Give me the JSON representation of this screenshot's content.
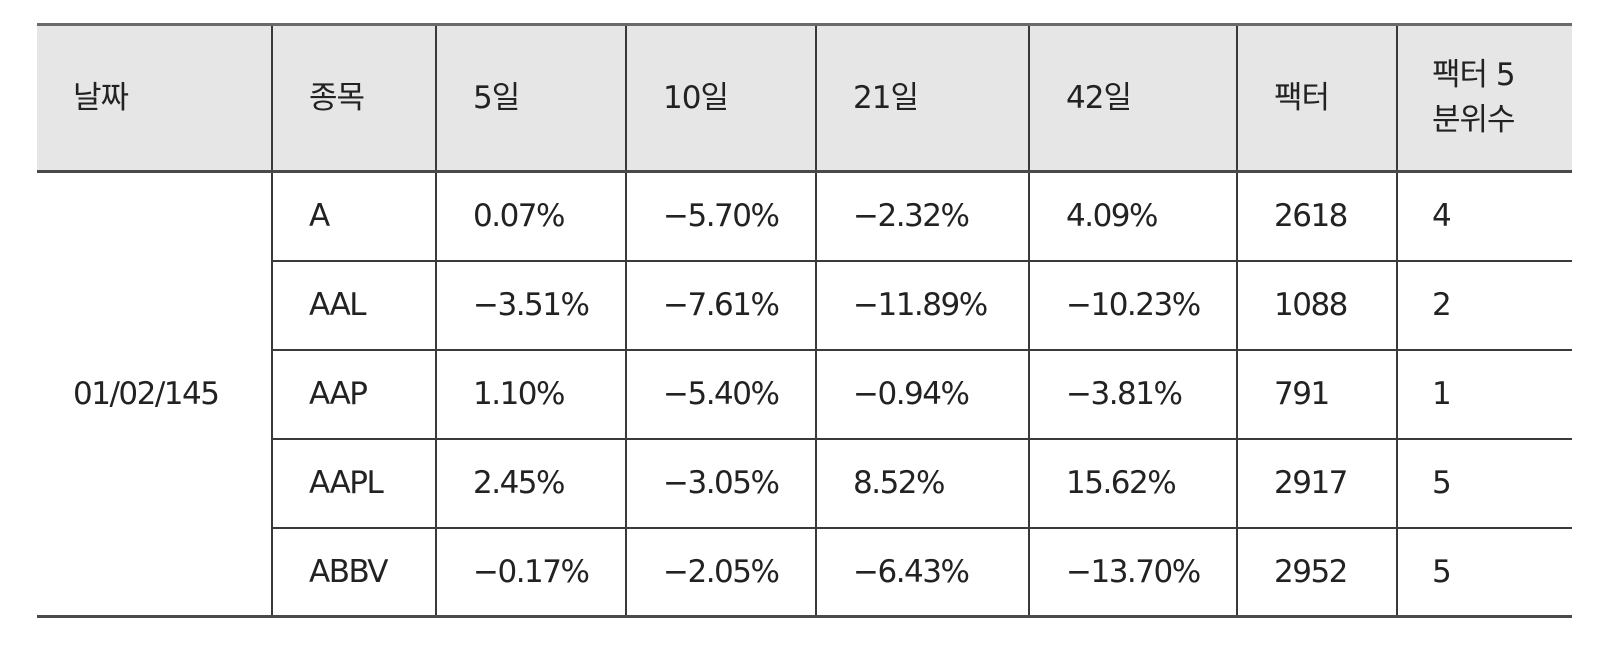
{
  "table": {
    "headers": {
      "date": "날짜",
      "ticker": "종목",
      "d5": "5일",
      "d10": "10일",
      "d21": "21일",
      "d42": "42일",
      "factor": "팩터",
      "quintile_line1": "팩터 5",
      "quintile_line2": "분위수"
    },
    "date": "01/02/145",
    "rows": [
      {
        "ticker": "A",
        "d5": "0.07%",
        "d10": "−5.70%",
        "d21": "−2.32%",
        "d42": "4.09%",
        "factor": "2618",
        "quintile": "4"
      },
      {
        "ticker": "AAL",
        "d5": "−3.51%",
        "d10": "−7.61%",
        "d21": "−11.89%",
        "d42": "−10.23%",
        "factor": "1088",
        "quintile": "2"
      },
      {
        "ticker": "AAP",
        "d5": "1.10%",
        "d10": "−5.40%",
        "d21": "−0.94%",
        "d42": "−3.81%",
        "factor": "791",
        "quintile": "1"
      },
      {
        "ticker": "AAPL",
        "d5": "2.45%",
        "d10": "−3.05%",
        "d21": "8.52%",
        "d42": "15.62%",
        "factor": "2917",
        "quintile": "5"
      },
      {
        "ticker": "ABBV",
        "d5": "−0.17%",
        "d10": "−2.05%",
        "d21": "−6.43%",
        "d42": "−13.70%",
        "factor": "2952",
        "quintile": "5"
      }
    ]
  }
}
